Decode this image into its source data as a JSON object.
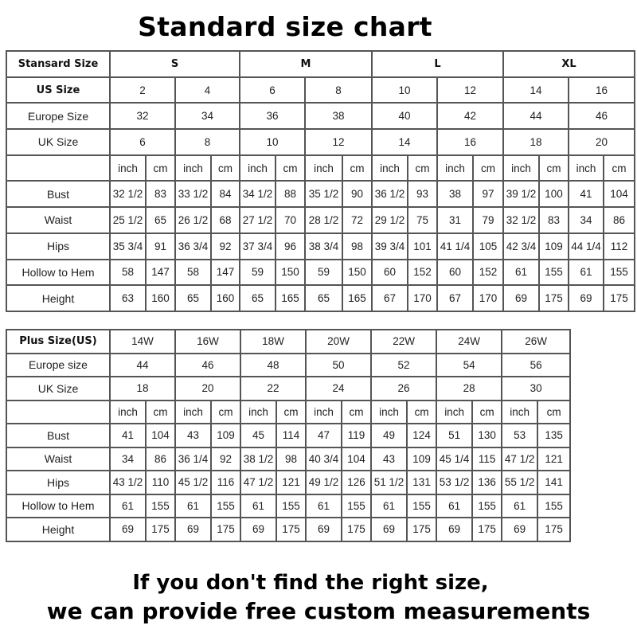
{
  "title": "Standard size chart",
  "standard": {
    "label": "Stansard Size",
    "groups": [
      "S",
      "M",
      "L",
      "XL"
    ],
    "rows": [
      {
        "label": "US Size",
        "bold": true,
        "values": [
          "2",
          "4",
          "6",
          "8",
          "10",
          "12",
          "14",
          "16"
        ]
      },
      {
        "label": "Europe Size",
        "values": [
          "32",
          "34",
          "36",
          "38",
          "40",
          "42",
          "44",
          "46"
        ]
      },
      {
        "label": "UK Size",
        "values": [
          "6",
          "8",
          "10",
          "12",
          "14",
          "16",
          "18",
          "20"
        ]
      }
    ],
    "units": [
      "inch",
      "cm"
    ],
    "measurements": [
      {
        "label": "Bust",
        "values": [
          "32 1/2",
          "83",
          "33 1/2",
          "84",
          "34 1/2",
          "88",
          "35 1/2",
          "90",
          "36 1/2",
          "93",
          "38",
          "97",
          "39 1/2",
          "100",
          "41",
          "104"
        ]
      },
      {
        "label": "Waist",
        "values": [
          "25 1/2",
          "65",
          "26 1/2",
          "68",
          "27 1/2",
          "70",
          "28 1/2",
          "72",
          "29 1/2",
          "75",
          "31",
          "79",
          "32 1/2",
          "83",
          "34",
          "86"
        ]
      },
      {
        "label": "Hips",
        "values": [
          "35 3/4",
          "91",
          "36 3/4",
          "92",
          "37 3/4",
          "96",
          "38 3/4",
          "98",
          "39 3/4",
          "101",
          "41 1/4",
          "105",
          "42 3/4",
          "109",
          "44 1/4",
          "112"
        ]
      },
      {
        "label": "Hollow to Hem",
        "values": [
          "58",
          "147",
          "58",
          "147",
          "59",
          "150",
          "59",
          "150",
          "60",
          "152",
          "60",
          "152",
          "61",
          "155",
          "61",
          "155"
        ]
      },
      {
        "label": "Height",
        "values": [
          "63",
          "160",
          "65",
          "160",
          "65",
          "165",
          "65",
          "165",
          "67",
          "170",
          "67",
          "170",
          "69",
          "175",
          "69",
          "175"
        ]
      }
    ]
  },
  "plus": {
    "label": "Plus Size(US)",
    "sizes": [
      "14W",
      "16W",
      "18W",
      "20W",
      "22W",
      "24W",
      "26W"
    ],
    "rows": [
      {
        "label": "Europe size",
        "values": [
          "44",
          "46",
          "48",
          "50",
          "52",
          "54",
          "56"
        ]
      },
      {
        "label": "UK Size",
        "values": [
          "18",
          "20",
          "22",
          "24",
          "26",
          "28",
          "30"
        ]
      }
    ],
    "units": [
      "inch",
      "cm"
    ],
    "measurements": [
      {
        "label": "Bust",
        "values": [
          "41",
          "104",
          "43",
          "109",
          "45",
          "114",
          "47",
          "119",
          "49",
          "124",
          "51",
          "130",
          "53",
          "135"
        ]
      },
      {
        "label": "Waist",
        "values": [
          "34",
          "86",
          "36 1/4",
          "92",
          "38 1/2",
          "98",
          "40 3/4",
          "104",
          "43",
          "109",
          "45 1/4",
          "115",
          "47 1/2",
          "121"
        ]
      },
      {
        "label": "Hips",
        "values": [
          "43 1/2",
          "110",
          "45 1/2",
          "116",
          "47 1/2",
          "121",
          "49 1/2",
          "126",
          "51 1/2",
          "131",
          "53 1/2",
          "136",
          "55 1/2",
          "141"
        ]
      },
      {
        "label": "Hollow to Hem",
        "values": [
          "61",
          "155",
          "61",
          "155",
          "61",
          "155",
          "61",
          "155",
          "61",
          "155",
          "61",
          "155",
          "61",
          "155"
        ]
      },
      {
        "label": "Height",
        "values": [
          "69",
          "175",
          "69",
          "175",
          "69",
          "175",
          "69",
          "175",
          "69",
          "175",
          "69",
          "175",
          "69",
          "175"
        ]
      }
    ]
  },
  "footer": {
    "line1": "If you don't find the right size,",
    "line2": "we can provide free custom measurements"
  }
}
